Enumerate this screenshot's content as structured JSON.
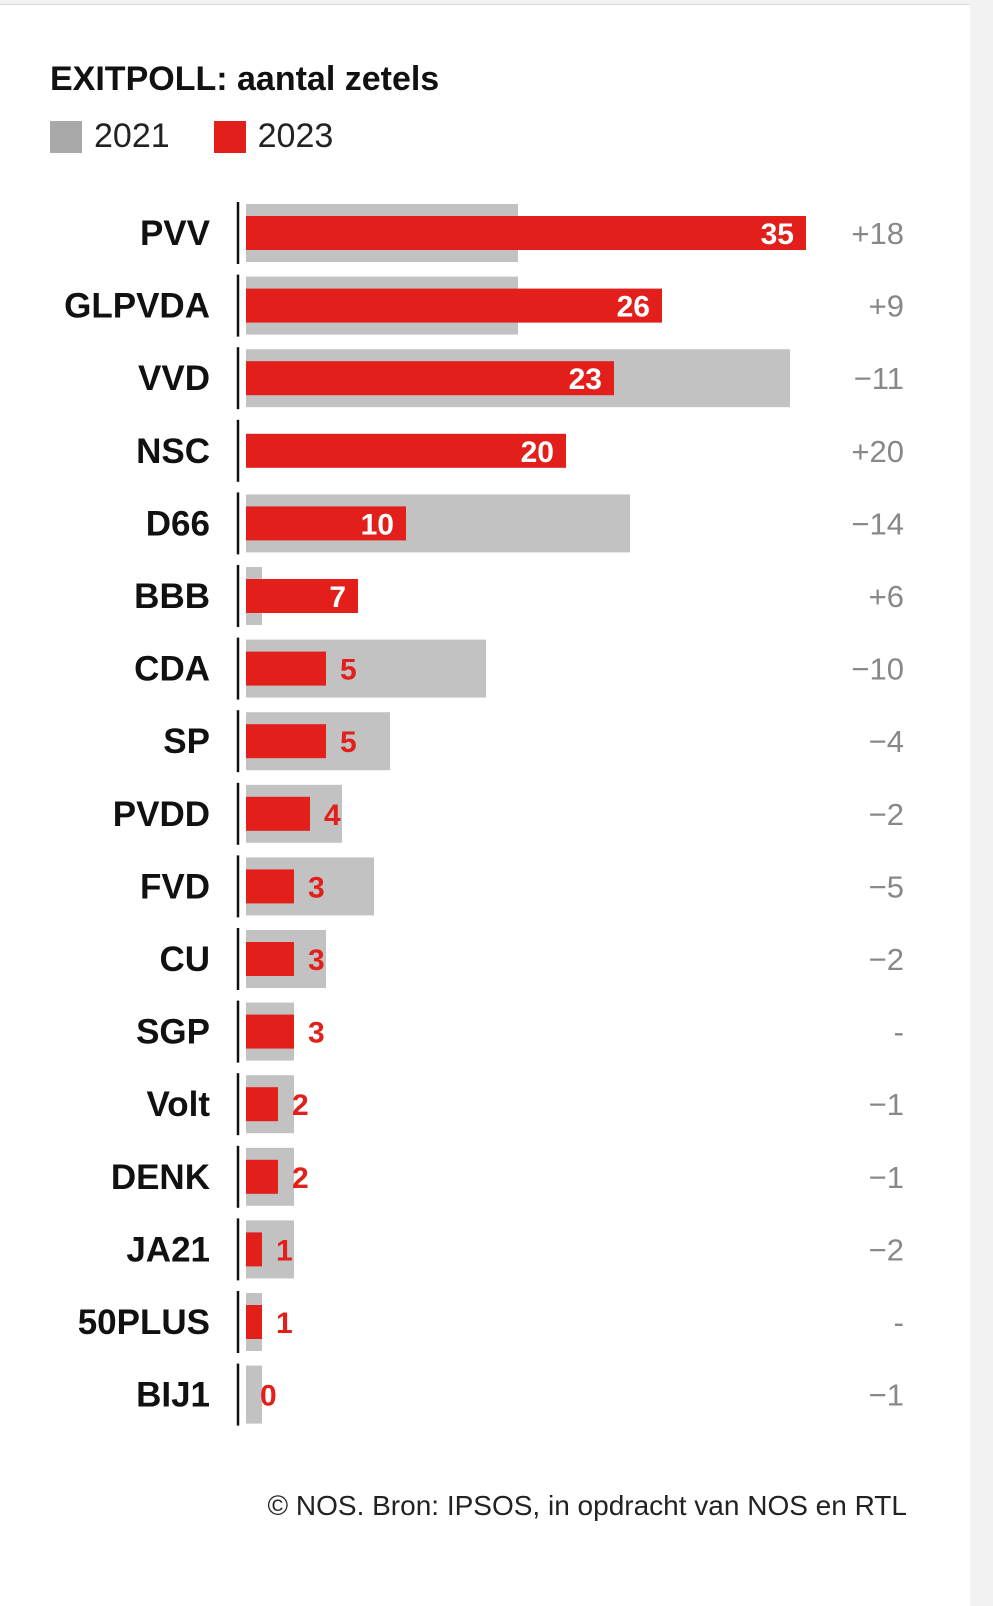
{
  "chart_data": {
    "type": "bar",
    "title": "EXITPOLL: aantal zetels",
    "legend": [
      "2021",
      "2023"
    ],
    "colors": {
      "2021": "#c2c2c2",
      "2023": "#e21f1a"
    },
    "categories": [
      "PVV",
      "GLPVDA",
      "VVD",
      "NSC",
      "D66",
      "BBB",
      "CDA",
      "SP",
      "PVDD",
      "FVD",
      "CU",
      "SGP",
      "Volt",
      "DENK",
      "JA21",
      "50PLUS",
      "BIJ1"
    ],
    "series": [
      {
        "name": "2021",
        "values": [
          17,
          17,
          34,
          0,
          24,
          1,
          15,
          9,
          6,
          8,
          5,
          3,
          3,
          3,
          3,
          1,
          1
        ]
      },
      {
        "name": "2023",
        "values": [
          35,
          26,
          23,
          20,
          10,
          7,
          5,
          5,
          4,
          3,
          3,
          3,
          2,
          2,
          1,
          1,
          0
        ]
      }
    ],
    "changes": [
      "+18",
      "+9",
      "−11",
      "+20",
      "−14",
      "+6",
      "−10",
      "−4",
      "−2",
      "−5",
      "−2",
      "-",
      "−1",
      "−1",
      "−2",
      "-",
      "−1"
    ]
  },
  "footer": "© NOS. Bron: IPSOS, in opdracht van NOS en RTL"
}
